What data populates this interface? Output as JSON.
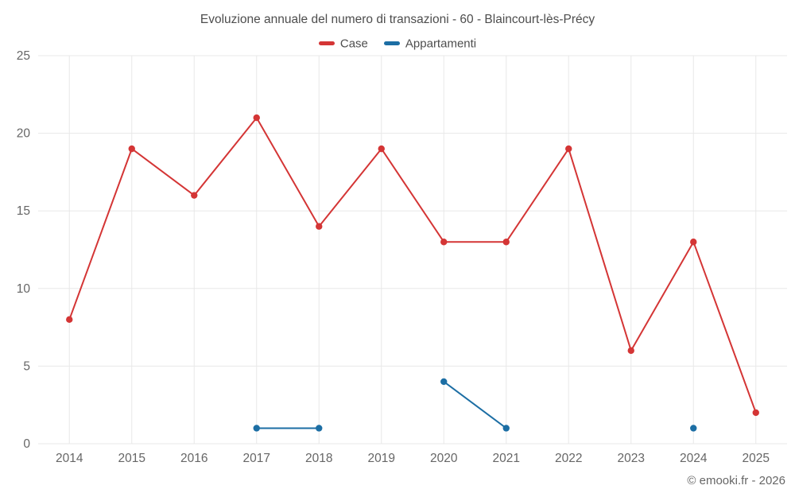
{
  "chart_data": {
    "type": "line",
    "title": "Evoluzione annuale del numero di transazioni - 60 - Blaincourt-lès-Précy",
    "categories": [
      "2014",
      "2015",
      "2016",
      "2017",
      "2018",
      "2019",
      "2020",
      "2021",
      "2022",
      "2023",
      "2024",
      "2025"
    ],
    "series": [
      {
        "name": "Case",
        "color": "#d43535",
        "values": [
          8,
          19,
          16,
          21,
          14,
          19,
          13,
          13,
          19,
          6,
          13,
          2
        ]
      },
      {
        "name": "Appartamenti",
        "color": "#1c6ea4",
        "values": [
          null,
          null,
          null,
          1,
          1,
          null,
          4,
          1,
          null,
          null,
          1,
          null
        ]
      }
    ],
    "ylim": [
      0,
      25
    ],
    "yticks": [
      0,
      5,
      10,
      15,
      20,
      25
    ],
    "grid": true,
    "legend_position": "top",
    "grid_color": "#e8e8e8",
    "tick_color": "#666666"
  },
  "footer": {
    "credit": "© emooki.fr - 2026"
  }
}
